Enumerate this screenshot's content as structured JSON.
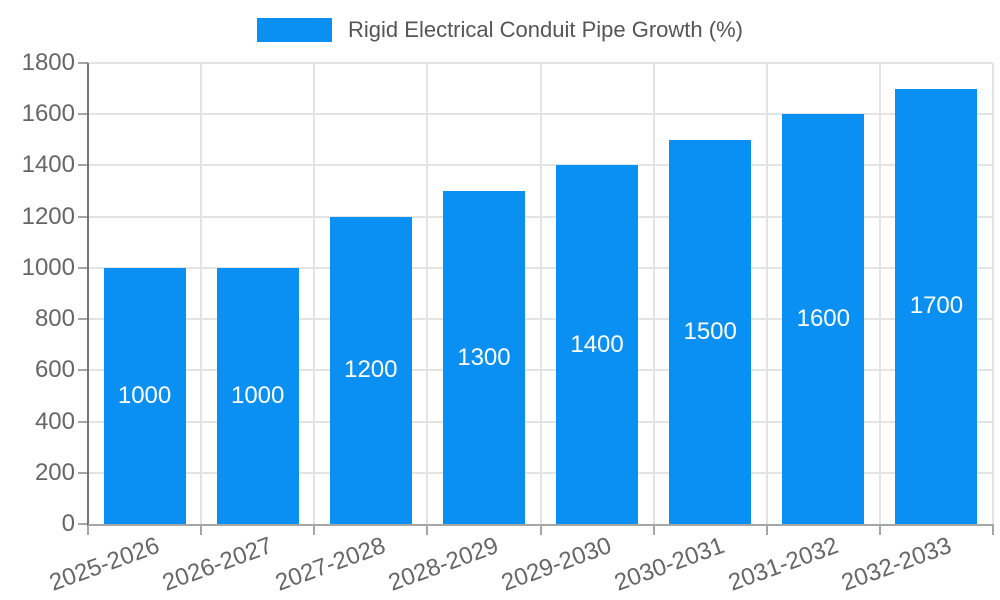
{
  "chart_data": {
    "type": "bar",
    "title": "Rigid Electrical Conduit Pipe Growth (%)",
    "categories": [
      "2025-2026",
      "2026-2027",
      "2027-2028",
      "2028-2029",
      "2029-2030",
      "2030-2031",
      "2031-2032",
      "2032-2033"
    ],
    "values": [
      1000,
      1000,
      1200,
      1300,
      1400,
      1500,
      1600,
      1700
    ],
    "value_labels": [
      "1000",
      "1000",
      "1200",
      "1300",
      "1400",
      "1500",
      "1600",
      "1700"
    ],
    "xlabel": "",
    "ylabel": "",
    "ylim": [
      0,
      1800
    ],
    "y_ticks": [
      0,
      200,
      400,
      600,
      800,
      1000,
      1200,
      1400,
      1600,
      1800
    ],
    "grid": true,
    "legend_position": "top-center",
    "legend_entries": [
      "Rigid Electrical Conduit Pipe Growth (%)"
    ],
    "colors": {
      "bar": "#0a90f3",
      "bar_value_label": "#ffffff",
      "tick_text": "#666666",
      "legend_text": "#555555",
      "gridline": "#e4e4e4",
      "y_axis_line": "#757575",
      "x_axis_line": "#a6a6a6",
      "tick_mark": "#a6a6a6",
      "background": "#ffffff"
    }
  }
}
